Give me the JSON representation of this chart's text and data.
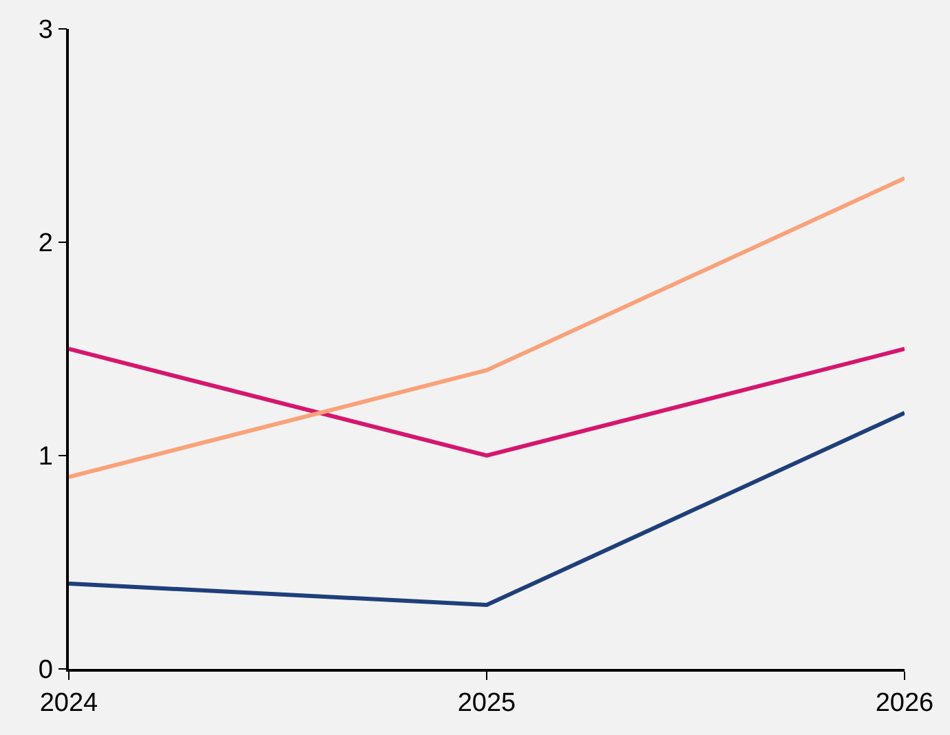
{
  "chart_data": {
    "type": "line",
    "x": [
      2024,
      2025,
      2026
    ],
    "xlim": [
      2024,
      2026
    ],
    "xticks": [
      2024,
      2025,
      2026
    ],
    "ylim": [
      0,
      3
    ],
    "yticks": [
      0,
      1,
      2,
      3
    ],
    "grid": false,
    "marker": "none",
    "line_style": "solid",
    "series": [
      {
        "color": "#1f3f7a",
        "values": [
          0.4,
          0.3,
          1.2
        ]
      },
      {
        "color": "#d6166e",
        "values": [
          1.5,
          1.0,
          1.5
        ]
      },
      {
        "color": "#f9a27a",
        "values": [
          0.9,
          1.4,
          2.3
        ]
      }
    ]
  }
}
